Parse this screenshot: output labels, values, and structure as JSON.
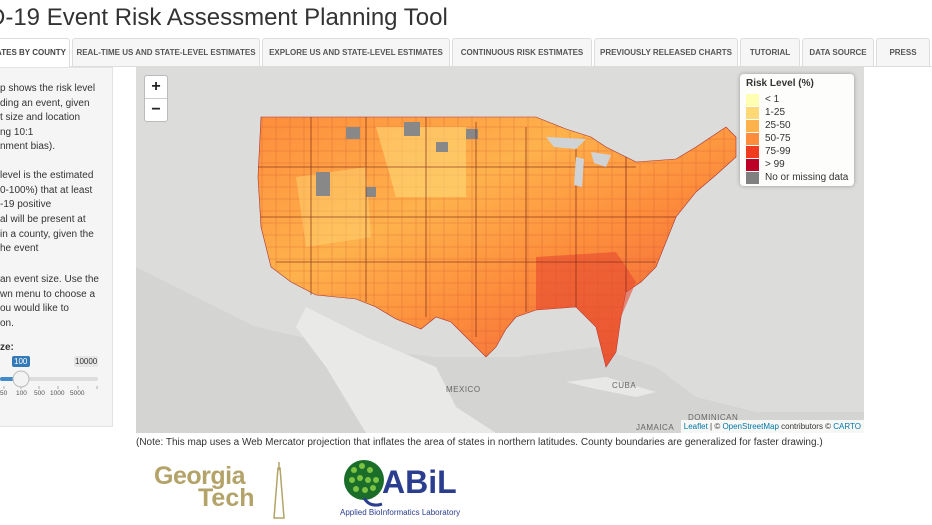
{
  "app": {
    "title": "D-19 Event Risk Assessment Planning Tool"
  },
  "tabs": [
    {
      "label": "ATES BY COUNTY"
    },
    {
      "label": "REAL-TIME US AND STATE-LEVEL ESTIMATES"
    },
    {
      "label": "EXPLORE US AND STATE-LEVEL ESTIMATES"
    },
    {
      "label": "CONTINUOUS RISK ESTIMATES"
    },
    {
      "label": "PREVIOUSLY RELEASED CHARTS"
    },
    {
      "label": "TUTORIAL"
    },
    {
      "label": "DATA SOURCE"
    },
    {
      "label": "PRESS"
    }
  ],
  "sidebar": {
    "para1": [
      "p shows the risk level",
      "ding an event, given",
      "t size and location",
      "ng 10:1",
      "nment bias)."
    ],
    "para2": [
      "level is the estimated",
      "0-100%) that at least",
      "-19 positive",
      "al will be present at",
      " in a county, given the",
      "he event"
    ],
    "para3": [
      "an event size. Use the",
      "wn menu to choose a",
      "ou would like to",
      "on."
    ],
    "size_label": "ze:",
    "slider": {
      "value": "100",
      "max_label": "10000",
      "ticks": [
        "50",
        "100",
        "500",
        "1000",
        "5000"
      ]
    }
  },
  "map": {
    "zoom_in": "+",
    "zoom_out": "−",
    "labels": {
      "mexico": "MEXICO",
      "cuba": "CUBA",
      "dominican": "DOMINICAN",
      "jamaica": "JAMAICA"
    },
    "attribution": {
      "leaflet": "Leaflet",
      "sep": " | © ",
      "osm": "OpenStreetMap",
      "contrib": " contributors © ",
      "carto": "CARTO"
    }
  },
  "legend": {
    "title": "Risk Level (%)",
    "items": [
      {
        "label": "< 1",
        "color": "#ffffb2"
      },
      {
        "label": "1-25",
        "color": "#fed976"
      },
      {
        "label": "25-50",
        "color": "#feb24c"
      },
      {
        "label": "50-75",
        "color": "#fd8d3c"
      },
      {
        "label": "75-99",
        "color": "#f03b20"
      },
      {
        "label": "> 99",
        "color": "#bd0026"
      },
      {
        "label": "No or missing data",
        "color": "#808080"
      }
    ]
  },
  "note": "(Note: This map uses a Web Mercator projection that inflates the area of states in northern latitudes. County boundaries are generalized for faster drawing.)",
  "logos": {
    "gt_line1": "Georgia",
    "gt_line2": "Tech",
    "abil_name": "ABiL",
    "abil_sub": "Applied BioInformatics Laboratory"
  }
}
